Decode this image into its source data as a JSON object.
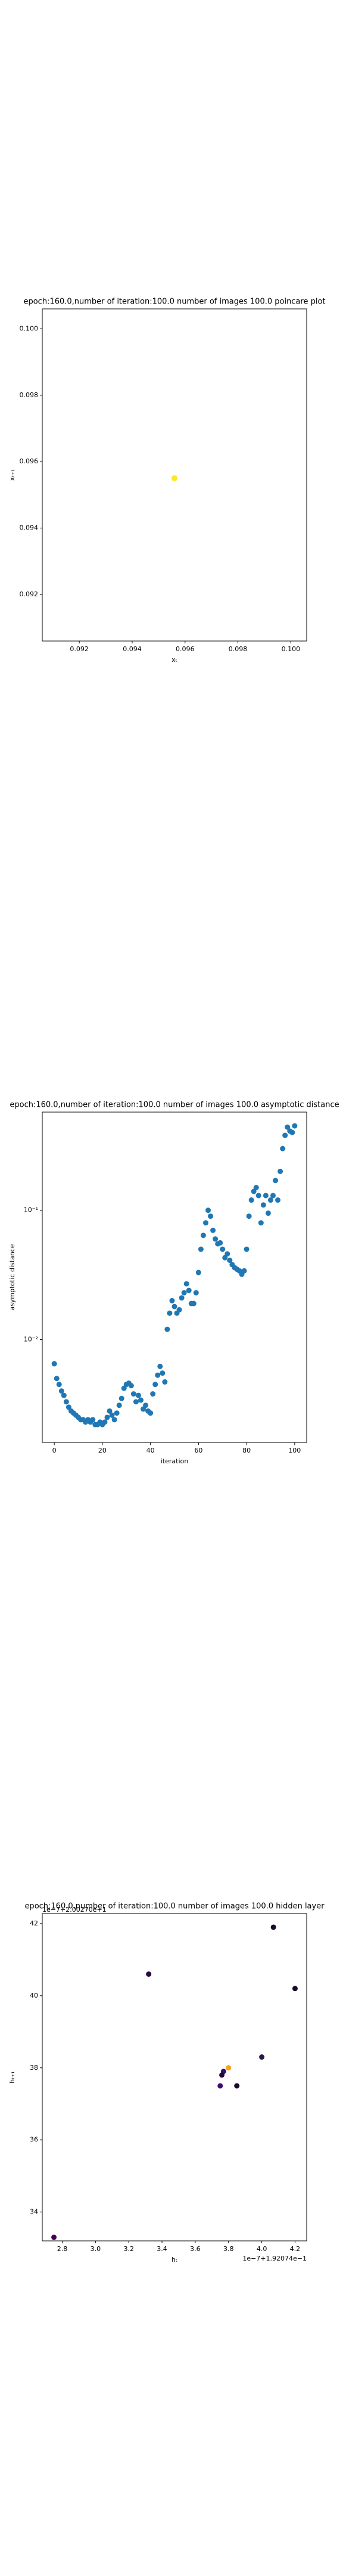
{
  "chart_data": [
    {
      "type": "scatter",
      "title": "epoch:160.0,number of iteration:100.0 number of images 100.0 poincare plot",
      "xlabel": "xₜ",
      "ylabel": "xₜ₊₁",
      "x": [
        0.0956
      ],
      "values": [
        0.0955
      ],
      "color": "#fde725",
      "xlim": [
        0.0906,
        0.1006
      ],
      "ylim": [
        0.0906,
        0.1006
      ],
      "xticks": [
        0.092,
        0.094,
        0.096,
        0.098,
        {
          "value": 0.1,
          "label": "0.100"
        }
      ],
      "yticks": [
        0.092,
        0.094,
        0.096,
        0.098,
        {
          "value": 0.1,
          "label": "0.100"
        }
      ],
      "grid": false
    },
    {
      "type": "scatter",
      "title": "epoch:160.0,number of iteration:100.0  number of images 100.0 asymptotic distance",
      "xlabel": "iteration",
      "ylabel": "asymptotic distance",
      "yscale": "log",
      "color": "#1f77b4",
      "x": [
        0,
        1,
        2,
        3,
        4,
        5,
        6,
        7,
        8,
        9,
        10,
        11,
        12,
        13,
        14,
        15,
        16,
        17,
        18,
        19,
        20,
        21,
        22,
        23,
        24,
        25,
        26,
        27,
        28,
        29,
        30,
        31,
        32,
        33,
        34,
        35,
        36,
        37,
        38,
        39,
        40,
        41,
        42,
        43,
        44,
        45,
        46,
        47,
        48,
        49,
        50,
        51,
        52,
        53,
        54,
        55,
        56,
        57,
        58,
        59,
        60,
        61,
        62,
        63,
        64,
        65,
        66,
        67,
        68,
        69,
        70,
        71,
        72,
        73,
        74,
        75,
        76,
        77,
        78,
        79,
        80,
        81,
        82,
        83,
        84,
        85,
        86,
        87,
        88,
        89,
        90,
        91,
        92,
        93,
        94,
        95,
        96,
        97,
        98,
        99,
        100
      ],
      "values": [
        0.0065,
        0.005,
        0.0045,
        0.004,
        0.0037,
        0.0033,
        0.003,
        0.0028,
        0.0027,
        0.0026,
        0.0025,
        0.0024,
        0.0024,
        0.0023,
        0.0024,
        0.0023,
        0.0024,
        0.0022,
        0.0022,
        0.0023,
        0.0022,
        0.0023,
        0.0025,
        0.0028,
        0.0026,
        0.0024,
        0.0027,
        0.0031,
        0.0035,
        0.0042,
        0.0045,
        0.0046,
        0.0044,
        0.0038,
        0.0033,
        0.0037,
        0.0034,
        0.0029,
        0.0031,
        0.0028,
        0.0027,
        0.0038,
        0.0045,
        0.0053,
        0.0062,
        0.0055,
        0.0047,
        0.012,
        0.016,
        0.02,
        0.018,
        0.016,
        0.017,
        0.021,
        0.023,
        0.027,
        0.024,
        0.019,
        0.019,
        0.023,
        0.033,
        0.05,
        0.064,
        0.08,
        0.1,
        0.09,
        0.07,
        0.06,
        0.055,
        0.056,
        0.05,
        0.043,
        0.046,
        0.041,
        0.038,
        0.036,
        0.035,
        0.034,
        0.032,
        0.034,
        0.05,
        0.09,
        0.12,
        0.14,
        0.15,
        0.13,
        0.08,
        0.11,
        0.13,
        0.095,
        0.12,
        0.13,
        0.17,
        0.12,
        0.2,
        0.3,
        0.38,
        0.44,
        0.41,
        0.4,
        0.45
      ],
      "xlim": [
        -5,
        105
      ],
      "ylim": [
        0.0016,
        0.575
      ],
      "xticks": [
        0,
        20,
        40,
        60,
        80,
        100
      ],
      "yticks": [
        {
          "value": 0.01,
          "label": "10⁻²"
        },
        {
          "value": 0.1,
          "label": "10⁻¹"
        }
      ],
      "grid": false
    },
    {
      "type": "scatter",
      "title": "epoch:160.0,number of iteration:100.0  number of images 100.0 hidden layer",
      "xlabel": "hₜ",
      "ylabel": "hₜ₊₁",
      "x_offset_label": "1e−7+1.92074e−1",
      "y_offset_label": "1e−7+2.00270e+1",
      "x": [
        2.75,
        3.32,
        4.07,
        4.2,
        4.0,
        3.75,
        3.85,
        3.77,
        3.8,
        3.76
      ],
      "values": [
        33.3,
        40.6,
        41.9,
        40.2,
        38.3,
        37.5,
        37.5,
        37.9,
        38.0,
        37.8
      ],
      "colors": [
        "#440154",
        "#2a0a3e",
        "#1a0a2a",
        "#1a0a2a",
        "#2d1745",
        "#3b0f70",
        "#1a0a2a",
        "#35126a",
        "#f5a31a",
        "#21083a"
      ],
      "xlim": [
        2.68,
        4.27
      ],
      "ylim": [
        33.2,
        42.28
      ],
      "xticks": [
        2.8,
        {
          "value": 3,
          "label": "3.0"
        },
        3.2,
        3.4,
        3.6,
        3.8,
        {
          "value": 4,
          "label": "4.0"
        },
        4.2
      ],
      "yticks": [
        34,
        36,
        38,
        40,
        42
      ],
      "grid": false
    }
  ]
}
